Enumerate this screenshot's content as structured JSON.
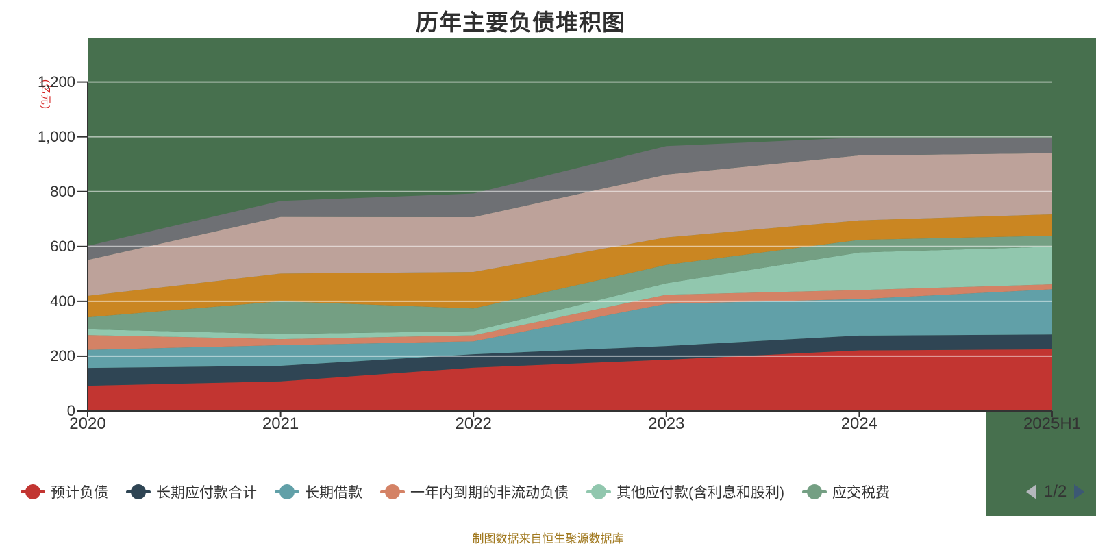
{
  "title": "历年主要负债堆积图",
  "source_note": "制图数据来自恒生聚源数据库",
  "colors": {
    "plot_background": "#47704e",
    "title_text": "#2f2f2f",
    "axis_text": "#333333",
    "footer_text": "#a0781e"
  },
  "y_axis": {
    "unit_label": "(亿元)",
    "unit_color": "#d42020",
    "ticks": [
      "0",
      "200",
      "400",
      "600",
      "800",
      "1,000",
      "1,200"
    ]
  },
  "legend": {
    "items": [
      {
        "label": "预计负债",
        "color": "#c23531"
      },
      {
        "label": "长期应付款合计",
        "color": "#2f4554"
      },
      {
        "label": "长期借款",
        "color": "#61a0a8"
      },
      {
        "label": "一年内到期的非流动负债",
        "color": "#d48265"
      },
      {
        "label": "其他应付款(含利息和股利)",
        "color": "#91c7ae"
      },
      {
        "label": "应交税费",
        "color": "#749f83"
      }
    ],
    "pagination": {
      "label": "1/2",
      "prev_color": "#b4b7bc",
      "next_color": "#3c5874"
    }
  },
  "chart_data": {
    "type": "area",
    "stacked": true,
    "title": "历年主要负债堆积图",
    "categories": [
      "2020",
      "2021",
      "2022",
      "2023",
      "2024",
      "2025H1"
    ],
    "series": [
      {
        "name": "预计负债",
        "color": "#c23531",
        "values": [
          92,
          108,
          158,
          187,
          221,
          225
        ]
      },
      {
        "name": "长期应付款合计",
        "color": "#2f4554",
        "values": [
          65,
          57,
          49,
          50,
          54,
          54
        ]
      },
      {
        "name": "长期借款",
        "color": "#61a0a8",
        "values": [
          66,
          75,
          47,
          154,
          133,
          165
        ]
      },
      {
        "name": "一年内到期的非流动负债",
        "color": "#d48265",
        "values": [
          54,
          22,
          22,
          33,
          33,
          18
        ]
      },
      {
        "name": "其他应付款(含利息和股利)",
        "color": "#91c7ae",
        "values": [
          21,
          19,
          15,
          42,
          137,
          137
        ]
      },
      {
        "name": "应交税费",
        "color": "#749f83",
        "values": [
          44,
          119,
          83,
          67,
          46,
          40
        ]
      },
      {
        "name": "",
        "color": "#ca8622",
        "values": [
          78,
          101,
          133,
          100,
          71,
          78
        ]
      },
      {
        "name": "",
        "color": "#bda29a",
        "values": [
          131,
          207,
          200,
          229,
          237,
          223
        ]
      },
      {
        "name": "",
        "color": "#6e7074",
        "values": [
          51,
          58,
          86,
          104,
          65,
          57
        ]
      }
    ],
    "ylim": [
      0,
      1200
    ],
    "y_tick_interval": 200,
    "grid": true,
    "gridline_color": "rgba(255,255,255,0.55)",
    "axis_color": "#333333",
    "legend_position": "bottom"
  }
}
